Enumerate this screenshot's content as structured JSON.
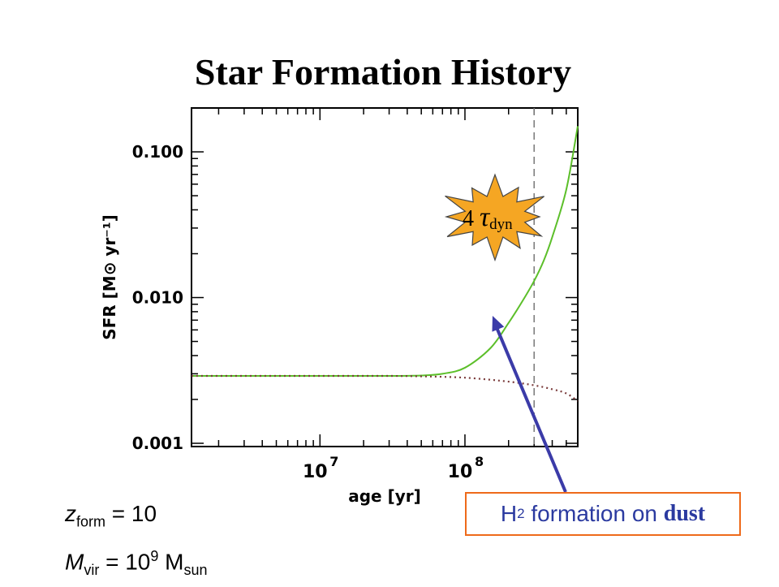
{
  "title": "Star Formation History",
  "chart_data": {
    "type": "line",
    "xlabel": "age [yr]",
    "ylabel": "SFR [M⊙ yr⁻¹]",
    "xscale": "log",
    "yscale": "log",
    "xlim": [
      1300000.0,
      600000000.0
    ],
    "ylim": [
      0.00095,
      0.2
    ],
    "x_ticks": [
      {
        "value": 10000000.0,
        "base": "10",
        "exp": "7"
      },
      {
        "value": 100000000.0,
        "base": "10",
        "exp": "8"
      }
    ],
    "y_ticks": [
      {
        "value": 0.001,
        "label": "0.001"
      },
      {
        "value": 0.01,
        "label": "0.010"
      },
      {
        "value": 0.1,
        "label": "0.100"
      }
    ],
    "grid": false,
    "series": [
      {
        "style": "solid",
        "color": "#5cbf2a",
        "x": [
          1300000.0,
          3000000.0,
          10000000.0,
          30000000.0,
          50000000.0,
          70000000.0,
          100000000.0,
          150000000.0,
          200000000.0,
          250000000.0,
          300000000.0,
          350000000.0,
          400000000.0,
          500000000.0,
          600000000.0
        ],
        "y": [
          0.0029,
          0.0029,
          0.0029,
          0.0029,
          0.00292,
          0.003,
          0.0033,
          0.0045,
          0.0067,
          0.0095,
          0.013,
          0.018,
          0.026,
          0.055,
          0.15
        ]
      },
      {
        "style": "dotted",
        "color": "#7a3b3b",
        "x": [
          1300000.0,
          3000000.0,
          10000000.0,
          30000000.0,
          50000000.0,
          100000000.0,
          200000000.0,
          300000000.0,
          400000000.0,
          500000000.0,
          600000000.0
        ],
        "y": [
          0.0029,
          0.0029,
          0.0029,
          0.0029,
          0.00288,
          0.00282,
          0.00265,
          0.0025,
          0.00235,
          0.0022,
          0.00195
        ]
      }
    ],
    "vline": {
      "x": 300000000.0,
      "style": "dashed",
      "color": "#777777"
    },
    "annotations": {
      "tau": {
        "prefix": "4 ",
        "symbol": "τ",
        "sub": "dyn",
        "burst_color": "#f5a623"
      },
      "arrow_target": {
        "x": 155000000.0,
        "y": 0.0075
      }
    }
  },
  "info": {
    "z_sym": "z",
    "z_sub": "form",
    "z_val": " = 10",
    "m_sym": "M",
    "m_sub": "vir",
    "m_eq": " = 10",
    "m_exp": "9",
    "m_unit": " M",
    "m_unit_sub": "sun"
  },
  "callout": {
    "h": "H",
    "h_sub": "2",
    "text": " formation on ",
    "dust": "dust",
    "border_color": "#ee6a1a",
    "arrow_color": "#3b3ba8"
  }
}
